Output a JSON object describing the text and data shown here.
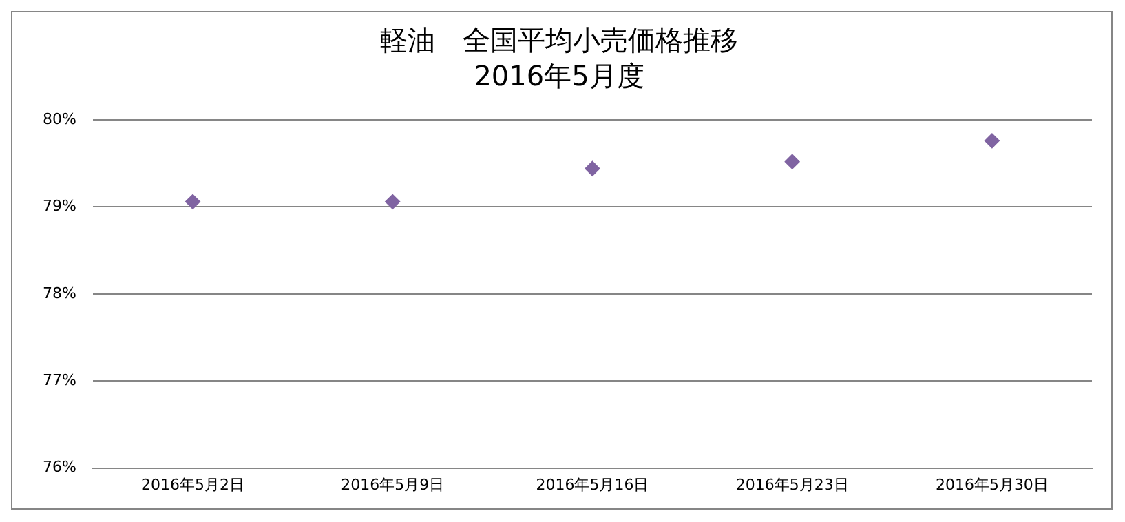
{
  "chart_data": {
    "type": "scatter",
    "title": "軽油　全国平均小売価格推移",
    "subtitle": "2016年5月度",
    "categories": [
      "2016年5月2日",
      "2016年5月9日",
      "2016年5月16日",
      "2016年5月23日",
      "2016年5月30日"
    ],
    "series": [
      {
        "color": "#8064a2",
        "values": [
          79.06,
          79.06,
          79.44,
          79.52,
          79.76
        ]
      }
    ],
    "ylim": [
      76,
      80
    ],
    "yticks": [
      {
        "value": 76,
        "label": "76%"
      },
      {
        "value": 77,
        "label": "77%"
      },
      {
        "value": 78,
        "label": "78%"
      },
      {
        "value": 79,
        "label": "79%"
      },
      {
        "value": 80,
        "label": "80%"
      }
    ],
    "grid": "y",
    "legend": false,
    "marker": "diamond"
  }
}
